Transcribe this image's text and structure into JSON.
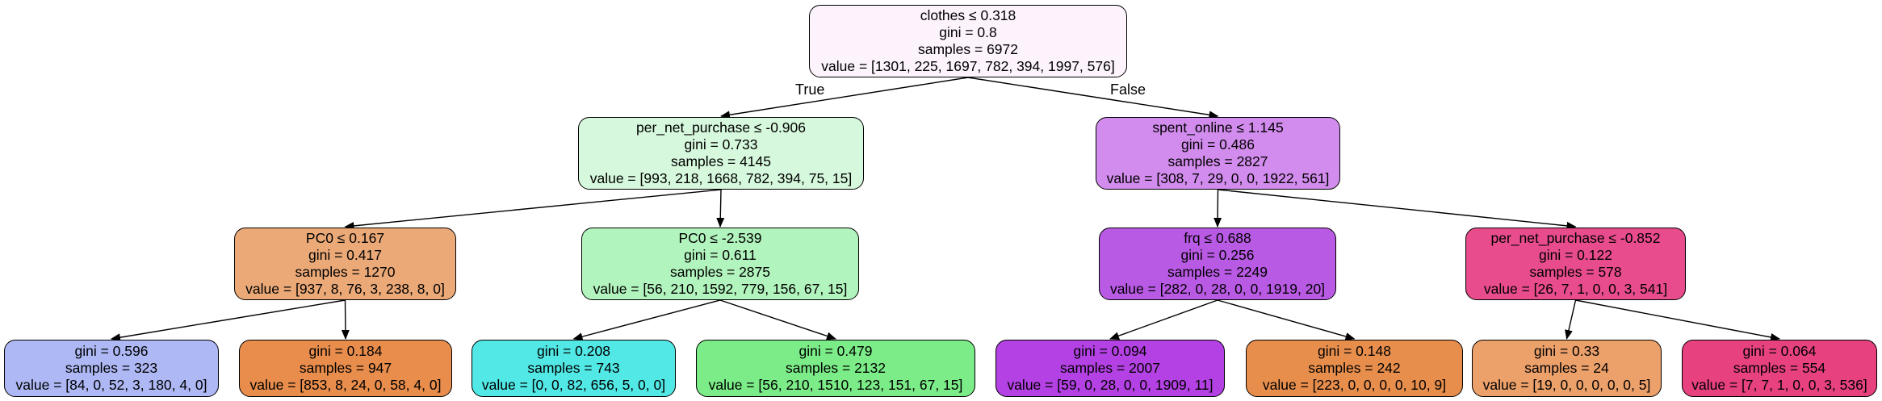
{
  "edge_labels": {
    "true_label": "True",
    "false_label": "False"
  },
  "nodes": [
    {
      "id": "n0",
      "fill": "#fcf3fd",
      "lines": [
        "clothes ≤ 0.318",
        "gini = 0.8",
        "samples = 6972",
        "value = [1301, 225, 1697, 782, 394, 1997, 576]"
      ]
    },
    {
      "id": "n1",
      "fill": "#d6f8dc",
      "lines": [
        "per_net_purchase ≤ -0.906",
        "gini = 0.733",
        "samples = 4145",
        "value = [993, 218, 1668, 782, 394, 75, 15]"
      ]
    },
    {
      "id": "n2",
      "fill": "#d28ced",
      "lines": [
        "spent_online ≤ 1.145",
        "gini = 0.486",
        "samples = 2827",
        "value = [308, 7, 29, 0, 0, 1922, 561]"
      ]
    },
    {
      "id": "n3",
      "fill": "#eba978",
      "lines": [
        "PC0 ≤ 0.167",
        "gini = 0.417",
        "samples = 1270",
        "value = [937, 8, 76, 3, 238, 8, 0]"
      ]
    },
    {
      "id": "n4",
      "fill": "#b2f4bd",
      "lines": [
        "PC0 ≤ -2.539",
        "gini = 0.611",
        "samples = 2875",
        "value = [56, 210, 1592, 779, 156, 67, 15]"
      ]
    },
    {
      "id": "n5",
      "fill": "#b95ae5",
      "lines": [
        "frq ≤ 0.688",
        "gini = 0.256",
        "samples = 2249",
        "value = [282, 0, 28, 0, 0, 1919, 20]"
      ]
    },
    {
      "id": "n6",
      "fill": "#e84c8c",
      "lines": [
        "per_net_purchase ≤ -0.852",
        "gini = 0.122",
        "samples = 578",
        "value = [26, 7, 1, 0, 0, 3, 541]"
      ]
    },
    {
      "id": "n7",
      "fill": "#adb8f4",
      "lines": [
        "gini = 0.596",
        "samples = 323",
        "value = [84, 0, 52, 3, 180, 4, 0]"
      ]
    },
    {
      "id": "n8",
      "fill": "#e88d4c",
      "lines": [
        "gini = 0.184",
        "samples = 947",
        "value = [853, 8, 24, 0, 58, 4, 0]"
      ]
    },
    {
      "id": "n9",
      "fill": "#52e8e6",
      "lines": [
        "gini = 0.208",
        "samples = 743",
        "value = [0, 0, 82, 656, 5, 0, 0]"
      ]
    },
    {
      "id": "n10",
      "fill": "#7bec87",
      "lines": [
        "gini = 0.479",
        "samples = 2132",
        "value = [56, 210, 1510, 123, 151, 67, 15]"
      ]
    },
    {
      "id": "n11",
      "fill": "#b441e3",
      "lines": [
        "gini = 0.094",
        "samples = 2007",
        "value = [59, 0, 28, 0, 0, 1909, 11]"
      ]
    },
    {
      "id": "n12",
      "fill": "#e88e4d",
      "lines": [
        "gini = 0.148",
        "samples = 242",
        "value = [223, 0, 0, 0, 0, 10, 9]"
      ]
    },
    {
      "id": "n13",
      "fill": "#eca06a",
      "lines": [
        "gini = 0.33",
        "samples = 24",
        "value = [19, 0, 0, 0, 0, 0, 5]"
      ]
    },
    {
      "id": "n14",
      "fill": "#e7417f",
      "lines": [
        "gini = 0.064",
        "samples = 554",
        "value = [7, 7, 1, 0, 0, 3, 536]"
      ]
    }
  ],
  "edges": [
    {
      "from": "n0",
      "to": "n1"
    },
    {
      "from": "n0",
      "to": "n2"
    },
    {
      "from": "n1",
      "to": "n3"
    },
    {
      "from": "n1",
      "to": "n4"
    },
    {
      "from": "n2",
      "to": "n5"
    },
    {
      "from": "n2",
      "to": "n6"
    },
    {
      "from": "n3",
      "to": "n7"
    },
    {
      "from": "n3",
      "to": "n8"
    },
    {
      "from": "n4",
      "to": "n9"
    },
    {
      "from": "n4",
      "to": "n10"
    },
    {
      "from": "n5",
      "to": "n11"
    },
    {
      "from": "n5",
      "to": "n12"
    },
    {
      "from": "n6",
      "to": "n13"
    },
    {
      "from": "n6",
      "to": "n14"
    }
  ]
}
